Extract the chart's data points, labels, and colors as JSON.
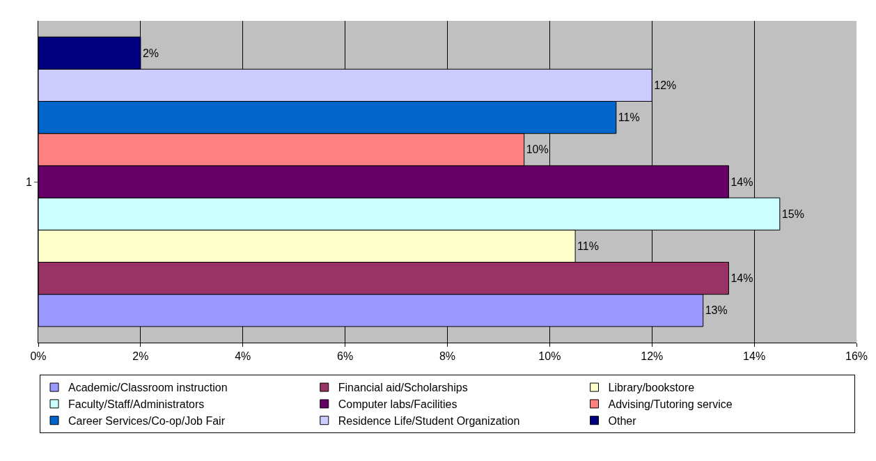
{
  "chart_data": {
    "type": "bar",
    "orientation": "horizontal",
    "categories": [
      "1"
    ],
    "series": [
      {
        "name": "Academic/Classroom instruction",
        "color": "#9999ff",
        "values": [
          13.0
        ],
        "value_labels": [
          "13%"
        ]
      },
      {
        "name": "Financial aid/Scholarships",
        "color": "#993366",
        "values": [
          13.5
        ],
        "value_labels": [
          "14%"
        ]
      },
      {
        "name": "Library/bookstore",
        "color": "#ffffcc",
        "values": [
          10.5
        ],
        "value_labels": [
          "11%"
        ]
      },
      {
        "name": "Faculty/Staff/Administrators",
        "color": "#ccffff",
        "values": [
          14.5
        ],
        "value_labels": [
          "15%"
        ]
      },
      {
        "name": "Computer labs/Facilities",
        "color": "#660066",
        "values": [
          13.5
        ],
        "value_labels": [
          "14%"
        ]
      },
      {
        "name": "Advising/Tutoring service",
        "color": "#ff8080",
        "values": [
          9.5
        ],
        "value_labels": [
          "10%"
        ]
      },
      {
        "name": "Career Services/Co-op/Job Fair",
        "color": "#0066cc",
        "values": [
          11.3
        ],
        "value_labels": [
          "11%"
        ]
      },
      {
        "name": "Residence Life/Student Organization",
        "color": "#ccccff",
        "values": [
          12.0
        ],
        "value_labels": [
          "12%"
        ]
      },
      {
        "name": "Other",
        "color": "#000080",
        "values": [
          2.0
        ],
        "value_labels": [
          "2%"
        ]
      }
    ],
    "xlim": [
      0,
      16
    ],
    "xticks": [
      {
        "value": 0,
        "label": "0%"
      },
      {
        "value": 2,
        "label": "2%"
      },
      {
        "value": 4,
        "label": "4%"
      },
      {
        "value": 6,
        "label": "6%"
      },
      {
        "value": 8,
        "label": "8%"
      },
      {
        "value": 10,
        "label": "10%"
      },
      {
        "value": 12,
        "label": "12%"
      },
      {
        "value": 14,
        "label": "14%"
      },
      {
        "value": 16,
        "label": "16%"
      }
    ],
    "grid": "x",
    "legend": "bottom"
  }
}
